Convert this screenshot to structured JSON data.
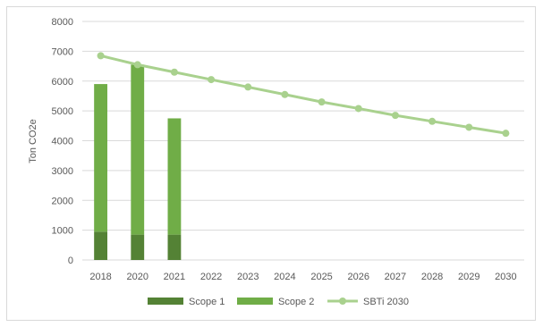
{
  "chart_data": {
    "type": "bar",
    "stacked": true,
    "title": "",
    "xlabel": "",
    "ylabel": "Ton CO2e",
    "ylim": [
      0,
      8000
    ],
    "yticks": [
      0,
      1000,
      2000,
      3000,
      4000,
      5000,
      6000,
      7000,
      8000
    ],
    "categories": [
      "2018",
      "2020",
      "2021",
      "2022",
      "2023",
      "2024",
      "2025",
      "2026",
      "2027",
      "2028",
      "2029",
      "2030"
    ],
    "grid": true,
    "legend_position": "bottom",
    "series": [
      {
        "name": "Scope 1",
        "kind": "bar",
        "color": "#548235",
        "values": [
          950,
          850,
          850,
          null,
          null,
          null,
          null,
          null,
          null,
          null,
          null,
          null
        ]
      },
      {
        "name": "Scope 2",
        "kind": "bar",
        "color": "#70ad47",
        "values": [
          4950,
          5700,
          3900,
          null,
          null,
          null,
          null,
          null,
          null,
          null,
          null,
          null
        ]
      },
      {
        "name": "SBTi 2030",
        "kind": "line",
        "color": "#a9d18e",
        "values": [
          6850,
          6550,
          6300,
          6050,
          5800,
          5550,
          5300,
          5080,
          4850,
          4650,
          4450,
          4250
        ]
      }
    ]
  }
}
